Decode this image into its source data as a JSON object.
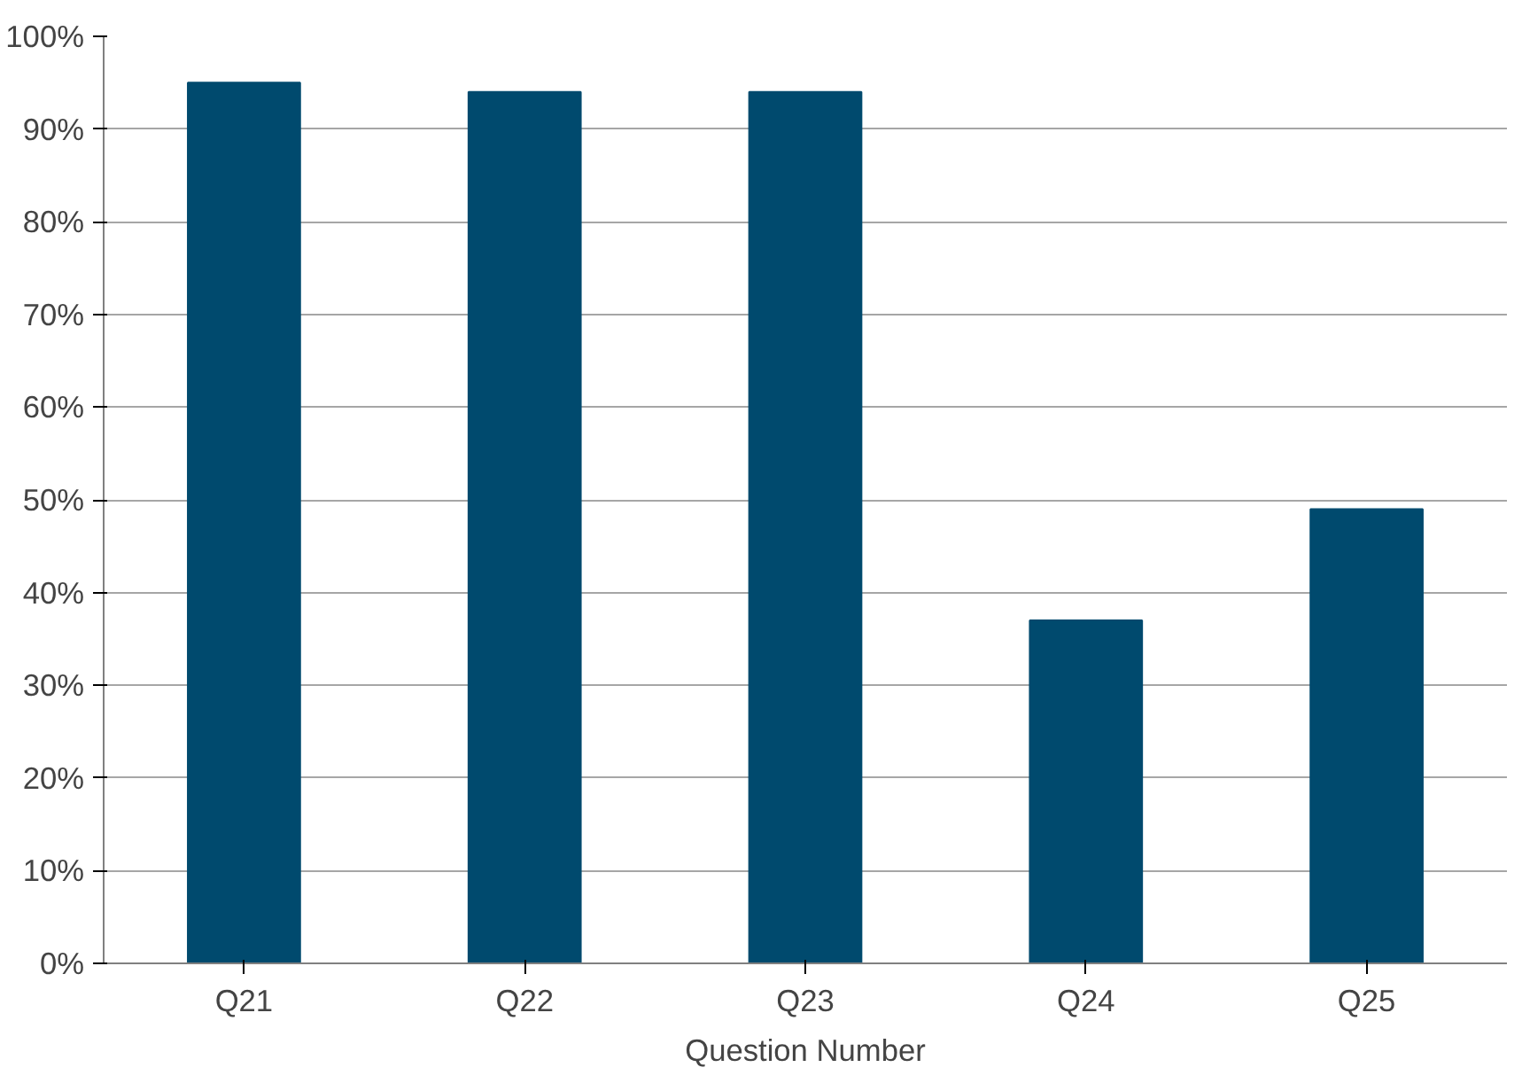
{
  "chart_data": {
    "type": "bar",
    "xlabel": "Question Number",
    "categories": [
      "Q21",
      "Q22",
      "Q23",
      "Q24",
      "Q25"
    ],
    "values": [
      95,
      94,
      94,
      37,
      49
    ],
    "color": "#004a6e",
    "ylim": [
      0,
      100
    ],
    "yticks": [
      {
        "value": 0,
        "label": "0%"
      },
      {
        "value": 10,
        "label": "10%"
      },
      {
        "value": 20,
        "label": "20%"
      },
      {
        "value": 30,
        "label": "30%"
      },
      {
        "value": 40,
        "label": "40%"
      },
      {
        "value": 50,
        "label": "50%"
      },
      {
        "value": 60,
        "label": "60%"
      },
      {
        "value": 70,
        "label": "70%"
      },
      {
        "value": 80,
        "label": "80%"
      },
      {
        "value": 90,
        "label": "90%"
      },
      {
        "value": 100,
        "label": "100%"
      }
    ],
    "grid": "y"
  }
}
